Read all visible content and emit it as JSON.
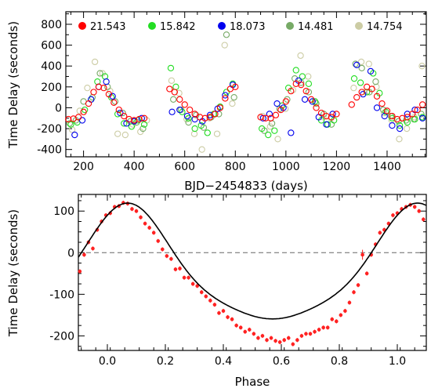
{
  "chart_data": [
    {
      "type": "scatter",
      "title": "",
      "xlabel": "BJD−2454833 (days)",
      "ylabel": "Time Delay (seconds)",
      "xlim": [
        130,
        1555
      ],
      "ylim": [
        -470,
        920
      ],
      "xticks": [
        200,
        400,
        600,
        800,
        1000,
        1200,
        1400
      ],
      "yticks": [
        -400,
        -200,
        0,
        200,
        400,
        600,
        800
      ],
      "legend_position": "top",
      "series": [
        {
          "name": "21.543",
          "color": "#ff0000",
          "marker": "open-circle",
          "x": [
            140,
            160,
            180,
            200,
            220,
            240,
            260,
            280,
            300,
            320,
            340,
            360,
            380,
            400,
            420,
            440,
            540,
            560,
            580,
            600,
            620,
            640,
            660,
            680,
            700,
            720,
            740,
            760,
            780,
            800,
            900,
            920,
            940,
            960,
            980,
            1000,
            1020,
            1040,
            1060,
            1080,
            1100,
            1120,
            1140,
            1160,
            1180,
            1200,
            1260,
            1280,
            1300,
            1320,
            1340,
            1360,
            1380,
            1400,
            1420,
            1440,
            1460,
            1480,
            1500,
            1520,
            1540
          ],
          "y": [
            -110,
            -105,
            -90,
            -40,
            40,
            150,
            200,
            190,
            130,
            50,
            -20,
            -80,
            -110,
            -120,
            -110,
            -100,
            180,
            150,
            80,
            30,
            -20,
            -60,
            -90,
            -100,
            -90,
            -60,
            0,
            90,
            180,
            200,
            -90,
            -100,
            -100,
            -70,
            -20,
            60,
            160,
            230,
            220,
            160,
            80,
            0,
            -50,
            -80,
            -90,
            -60,
            30,
            100,
            150,
            200,
            180,
            110,
            40,
            -30,
            -80,
            -110,
            -100,
            -90,
            -60,
            -20,
            30
          ]
        },
        {
          "name": "15.842",
          "color": "#22dd22",
          "marker": "open-circle",
          "x": [
            150,
            175,
            205,
            230,
            255,
            285,
            310,
            335,
            360,
            390,
            415,
            440,
            545,
            565,
            590,
            615,
            640,
            665,
            690,
            715,
            740,
            765,
            790,
            905,
            930,
            955,
            985,
            1010,
            1040,
            1065,
            1090,
            1115,
            1140,
            1165,
            1190,
            1270,
            1295,
            1320,
            1345,
            1370,
            1395,
            1420,
            1450,
            1480,
            1510,
            1540
          ],
          "y": [
            -160,
            -140,
            -20,
            80,
            250,
            300,
            100,
            -60,
            -150,
            -180,
            -120,
            -160,
            380,
            200,
            -40,
            -100,
            -200,
            -170,
            -240,
            -60,
            10,
            150,
            230,
            -200,
            -260,
            -220,
            20,
            190,
            360,
            300,
            230,
            60,
            -120,
            -160,
            -120,
            280,
            240,
            150,
            330,
            140,
            -40,
            -100,
            -170,
            -140,
            -110,
            -90
          ]
        },
        {
          "name": "18.073",
          "color": "#0000ee",
          "marker": "open-circle",
          "x": [
            165,
            195,
            230,
            260,
            290,
            315,
            345,
            370,
            400,
            430,
            550,
            580,
            610,
            640,
            670,
            700,
            730,
            760,
            790,
            910,
            935,
            965,
            990,
            1020,
            1050,
            1075,
            1105,
            1130,
            1160,
            1185,
            1280,
            1305,
            1335,
            1360,
            1390,
            1420,
            1450,
            1480,
            1510,
            1540
          ],
          "y": [
            -260,
            -120,
            80,
            200,
            250,
            110,
            -50,
            -150,
            -130,
            -100,
            -40,
            -20,
            -80,
            -110,
            -130,
            -70,
            -10,
            120,
            220,
            -100,
            -60,
            40,
            0,
            -240,
            260,
            80,
            60,
            -90,
            -160,
            -60,
            410,
            130,
            350,
            0,
            -80,
            -170,
            -200,
            -60,
            -20,
            -100
          ]
        },
        {
          "name": "14.481",
          "color": "#77aa66",
          "marker": "open-circle",
          "x": [
            145,
            170,
            200,
            235,
            265,
            295,
            325,
            355,
            385,
            410,
            435,
            555,
            585,
            615,
            645,
            675,
            705,
            735,
            765,
            795,
            915,
            945,
            975,
            1005,
            1035,
            1060,
            1090,
            1120,
            1150,
            1180,
            1275,
            1300,
            1330,
            1355,
            1385,
            1415,
            1445,
            1475,
            1505,
            1535
          ],
          "y": [
            -150,
            -120,
            60,
            100,
            330,
            200,
            60,
            -50,
            -130,
            -140,
            -200,
            80,
            -20,
            -140,
            -70,
            -190,
            -90,
            -60,
            700,
            100,
            -220,
            -150,
            -10,
            80,
            280,
            240,
            150,
            40,
            -60,
            -160,
            420,
            380,
            150,
            250,
            -20,
            -80,
            -130,
            -120,
            -110,
            -60
          ]
        },
        {
          "name": "14.754",
          "color": "#cccca4",
          "marker": "open-circle",
          "x": [
            155,
            185,
            215,
            245,
            275,
            305,
            335,
            365,
            395,
            425,
            450,
            548,
            578,
            608,
            638,
            668,
            698,
            728,
            758,
            788,
            908,
            938,
            968,
            998,
            1028,
            1058,
            1088,
            1118,
            1148,
            1178,
            1268,
            1298,
            1328,
            1358,
            1388,
            1418,
            1448,
            1478,
            1508,
            1538
          ],
          "y": [
            -210,
            -30,
            190,
            440,
            330,
            160,
            -250,
            -260,
            -160,
            -230,
            -120,
            260,
            140,
            -110,
            -250,
            -400,
            -100,
            -250,
            600,
            40,
            -80,
            -180,
            -300,
            -10,
            170,
            500,
            300,
            50,
            -90,
            -100,
            190,
            440,
            420,
            200,
            -50,
            -120,
            -300,
            -200,
            -90,
            400
          ]
        }
      ]
    },
    {
      "type": "scatter",
      "title": "",
      "xlabel": "Phase",
      "ylabel": "Time Delay (seconds)",
      "xlim": [
        -0.1,
        1.1
      ],
      "ylim": [
        -235,
        140
      ],
      "xticks": [
        0.0,
        0.2,
        0.4,
        0.6,
        0.8,
        1.0
      ],
      "xtick_labels": [
        "0.0",
        "0.2",
        "0.4",
        "0.6",
        "0.8",
        "1.0"
      ],
      "yticks": [
        -200,
        -100,
        0,
        100
      ],
      "reference_line": {
        "y": 0,
        "style": "dashed"
      },
      "series": [
        {
          "name": "",
          "color": "#ff2222",
          "marker": "filled-dot",
          "error_bars": true,
          "x": [
            -0.095,
            -0.08,
            -0.065,
            -0.05,
            -0.035,
            -0.02,
            -0.005,
            0.01,
            0.025,
            0.04,
            0.055,
            0.07,
            0.085,
            0.1,
            0.115,
            0.13,
            0.145,
            0.16,
            0.175,
            0.19,
            0.205,
            0.22,
            0.235,
            0.25,
            0.265,
            0.28,
            0.295,
            0.31,
            0.325,
            0.34,
            0.355,
            0.37,
            0.385,
            0.4,
            0.415,
            0.43,
            0.445,
            0.46,
            0.475,
            0.49,
            0.505,
            0.52,
            0.535,
            0.55,
            0.565,
            0.58,
            0.595,
            0.61,
            0.625,
            0.64,
            0.655,
            0.67,
            0.685,
            0.7,
            0.715,
            0.73,
            0.745,
            0.76,
            0.775,
            0.79,
            0.805,
            0.82,
            0.835,
            0.85,
            0.865,
            0.88,
            0.895,
            0.91,
            0.925,
            0.94,
            0.955,
            0.97,
            0.985,
            1.0,
            1.015,
            1.03,
            1.045,
            1.06,
            1.075,
            1.09
          ],
          "y": [
            -45,
            -5,
            25,
            10,
            55,
            75,
            90,
            95,
            110,
            112,
            120,
            118,
            105,
            100,
            85,
            70,
            60,
            48,
            28,
            8,
            -8,
            -15,
            -40,
            -38,
            -60,
            -60,
            -75,
            -80,
            -95,
            -105,
            -115,
            -125,
            -145,
            -140,
            -155,
            -160,
            -175,
            -180,
            -190,
            -185,
            -195,
            -205,
            -200,
            -210,
            -205,
            -212,
            -215,
            -210,
            -205,
            -220,
            -210,
            -200,
            -195,
            -195,
            -190,
            -185,
            -180,
            -180,
            -160,
            -165,
            -150,
            -140,
            -120,
            -95,
            -78,
            -5,
            -50,
            -5,
            20,
            48,
            55,
            70,
            90,
            95,
            105,
            110,
            115,
            110,
            100,
            80
          ],
          "yerr": [
            5,
            5,
            5,
            5,
            5,
            5,
            5,
            5,
            5,
            5,
            5,
            5,
            5,
            5,
            5,
            5,
            5,
            5,
            5,
            5,
            5,
            5,
            5,
            5,
            5,
            5,
            5,
            5,
            5,
            5,
            5,
            5,
            5,
            5,
            5,
            5,
            5,
            5,
            5,
            5,
            5,
            5,
            5,
            5,
            5,
            5,
            5,
            5,
            5,
            5,
            5,
            5,
            5,
            5,
            5,
            5,
            5,
            5,
            5,
            5,
            5,
            5,
            5,
            5,
            5,
            12,
            5,
            5,
            5,
            5,
            5,
            5,
            5,
            5,
            5,
            5,
            5,
            5,
            5,
            5
          ]
        }
      ],
      "fit": {
        "type": "line",
        "color": "#000000",
        "model": "sinusoid with eccentricity (fitted orbit)"
      }
    }
  ]
}
